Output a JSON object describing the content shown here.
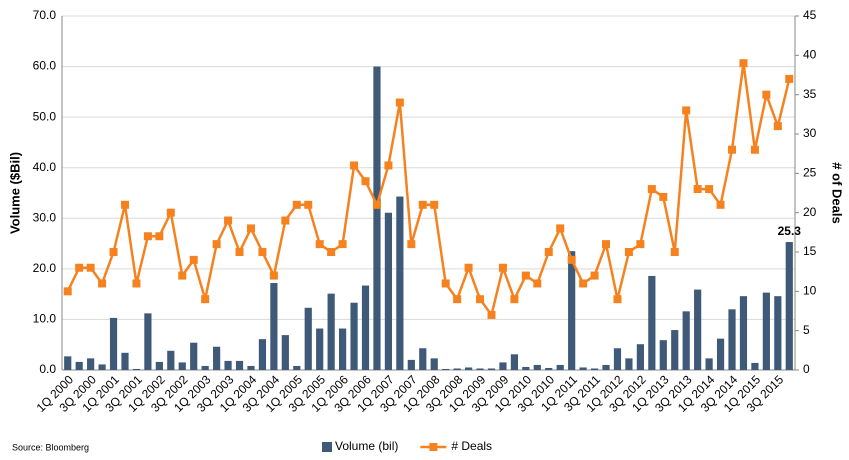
{
  "chart_data": {
    "type": "bar",
    "source": "Source: Bloomberg",
    "y_label": "Volume ($Bil)",
    "y2_label": "# of Deals",
    "categories": [
      "1Q 2000",
      null,
      "3Q 2000",
      null,
      "1Q 2001",
      null,
      "3Q 2001",
      null,
      "1Q 2002",
      null,
      "3Q 2002",
      null,
      "1Q 2003",
      null,
      "3Q 2003",
      null,
      "1Q 2004",
      null,
      "3Q 2004",
      null,
      "1Q 2005",
      null,
      "3Q 2005",
      null,
      "1Q 2006",
      null,
      "3Q 2006",
      null,
      "1Q 2007",
      null,
      "3Q 2007",
      null,
      "1Q 2008",
      null,
      "3Q 2008",
      null,
      "1Q 2009",
      null,
      "3Q 2009",
      null,
      "1Q 2010",
      null,
      "3Q 2010",
      null,
      "1Q 2011",
      null,
      "3Q 2011",
      null,
      "1Q 2012",
      null,
      "3Q 2012",
      null,
      "1Q 2013",
      null,
      "3Q 2013",
      null,
      "1Q 2014",
      null,
      "3Q 2014",
      null,
      "1Q 2015",
      null,
      "3Q 2015",
      null
    ],
    "series": [
      {
        "name": "Volume (bil)",
        "type": "bar",
        "color": "#3f5a78",
        "values": [
          2.7,
          1.6,
          2.3,
          1.1,
          10.3,
          3.4,
          0.2,
          11.2,
          1.6,
          3.8,
          1.5,
          5.4,
          0.8,
          4.6,
          1.8,
          1.8,
          0.8,
          6.1,
          17.2,
          6.9,
          0.8,
          12.3,
          8.2,
          15.1,
          8.2,
          13.3,
          16.7,
          60.0,
          31.1,
          34.3,
          2.0,
          4.3,
          2.3,
          0.2,
          0.3,
          0.5,
          0.3,
          0.3,
          1.5,
          3.1,
          0.6,
          1.0,
          0.4,
          1.0,
          23.5,
          0.5,
          0.3,
          1.0,
          4.3,
          2.3,
          5.1,
          18.6,
          5.9,
          7.9,
          11.6,
          15.9,
          2.3,
          6.2,
          12.0,
          14.6,
          1.4,
          15.3,
          14.6,
          25.3
        ],
        "value_labels": [
          null,
          null,
          null,
          null,
          null,
          null,
          null,
          null,
          null,
          null,
          null,
          null,
          null,
          null,
          null,
          null,
          null,
          null,
          null,
          null,
          null,
          null,
          null,
          null,
          null,
          null,
          null,
          null,
          null,
          null,
          null,
          null,
          null,
          null,
          null,
          null,
          null,
          null,
          null,
          null,
          null,
          null,
          null,
          null,
          null,
          null,
          null,
          null,
          null,
          null,
          null,
          null,
          null,
          null,
          null,
          null,
          null,
          null,
          null,
          null,
          null,
          null,
          null,
          "25.3"
        ]
      },
      {
        "name": "# Deals",
        "type": "line",
        "axis": "y2",
        "color": "#f5821f",
        "values": [
          10,
          13,
          13,
          11,
          15,
          21,
          11,
          17,
          17,
          20,
          12,
          14,
          9,
          16,
          19,
          15,
          18,
          15,
          12,
          19,
          21,
          21,
          16,
          15,
          16,
          26,
          24,
          21,
          26,
          34,
          16,
          21,
          21,
          11,
          9,
          13,
          9,
          7,
          13,
          9,
          12,
          11,
          15,
          18,
          14,
          11,
          12,
          16,
          9,
          15,
          16,
          23,
          22,
          15,
          33,
          23,
          23,
          21,
          28,
          39,
          28,
          35,
          31,
          37
        ]
      }
    ],
    "ylim": [
      0,
      70
    ],
    "yticks": [
      {
        "value": 0,
        "label": "0.0"
      },
      {
        "value": 10,
        "label": "10.0"
      },
      {
        "value": 20,
        "label": "20.0"
      },
      {
        "value": 30,
        "label": "30.0"
      },
      {
        "value": 40,
        "label": "40.0"
      },
      {
        "value": 50,
        "label": "50.0"
      },
      {
        "value": 60,
        "label": "60.0"
      },
      {
        "value": 70,
        "label": "70.0"
      }
    ],
    "y2lim": [
      0,
      45
    ],
    "y2ticks": [
      0,
      5,
      10,
      15,
      20,
      25,
      30,
      35,
      40,
      45
    ],
    "grid": true,
    "legend": "bottom"
  }
}
